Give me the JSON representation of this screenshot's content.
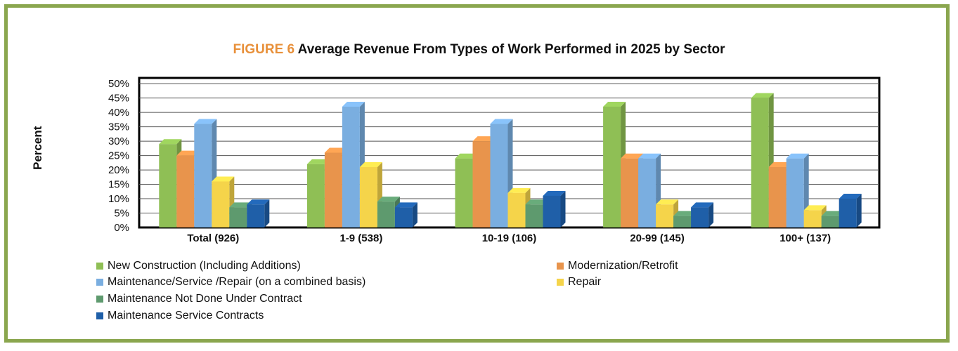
{
  "title": {
    "figure_label": "FIGURE 6",
    "text": "Average Revenue From Types of Work Performed in 2025 by Sector"
  },
  "chart_data": {
    "type": "bar",
    "title": "FIGURE 6 Average Revenue From Types of Work Performed in 2025 by Sector",
    "xlabel": "",
    "ylabel": "Percent",
    "ylim": [
      0,
      52
    ],
    "y_ticks": [
      "0%",
      "5%",
      "10%",
      "15%",
      "20%",
      "25%",
      "30%",
      "35%",
      "40%",
      "45%",
      "50%"
    ],
    "grid": true,
    "legend_position": "bottom",
    "categories": [
      "Total (926)",
      "1-9 (538)",
      "10-19 (106)",
      "20-99 (145)",
      "100+ (137)"
    ],
    "series": [
      {
        "name": "New Construction (Including Additions)",
        "color": "#8fbf55",
        "values": [
          29,
          22,
          24,
          42,
          45
        ]
      },
      {
        "name": "Modernization/Retrofit",
        "color": "#e8944c",
        "values": [
          25,
          26,
          30,
          24,
          21
        ]
      },
      {
        "name": "Maintenance/Service /Repair (on a combined basis)",
        "color": "#7aaee0",
        "values": [
          36,
          42,
          36,
          24,
          24
        ]
      },
      {
        "name": "Repair",
        "color": "#f5d44a",
        "values": [
          16,
          21,
          12,
          8,
          6
        ]
      },
      {
        "name": "Maintenance Not Done Under Contract",
        "color": "#5e9a6e",
        "values": [
          7,
          9,
          8,
          4,
          4
        ]
      },
      {
        "name": "Maintenance Service Contracts",
        "color": "#1f5fa8",
        "values": [
          8,
          7,
          11,
          7,
          10
        ]
      }
    ]
  }
}
